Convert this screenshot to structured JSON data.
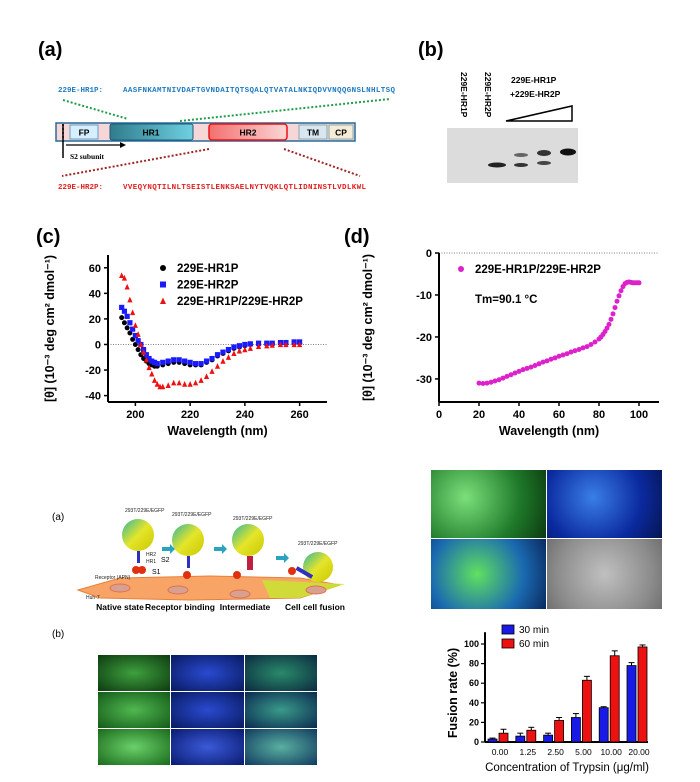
{
  "panel_labels": {
    "a": "(a)",
    "b": "(b)",
    "c": "(c)",
    "d": "(d)",
    "a2": "(a)",
    "b2": "(b)"
  },
  "domain_diagram": {
    "hr1p_label": "229E-HR1P:",
    "hr1p_seq": "AASFNKAMTNIVDAFTGVNDAITQTSQALQTVATALNKIQDVVNQQGNSLNHLTSQ",
    "hr2p_label": "229E-HR2P:",
    "hr2p_seq": "VVEQYNQTILNLTSEISTLENKSAELNYTVQKLQTLIDNINSTLVDLKWL",
    "domains": [
      "FP",
      "HR1",
      "HR2",
      "TM",
      "CP"
    ],
    "s2_label": "S2 subunit",
    "colors": {
      "hr1p": "#1f7ac0",
      "hr2p": "#e02020",
      "hr1_dots": "#1e9e4a",
      "hr2_dots": "#a02525"
    }
  },
  "gel": {
    "lanes": [
      "229E-HR1P",
      "229E-HR2P"
    ],
    "mix_label_1": "229E-HR1P",
    "mix_label_2": "+229E-HR2P"
  },
  "chart_data": [
    {
      "type": "scatter",
      "id": "c",
      "xlabel": "Wavelength (nm)",
      "ylabel": "[θ] (10⁻³ deg cm² dmol⁻¹)",
      "xlim": [
        190,
        270
      ],
      "ylim": [
        -45,
        70
      ],
      "xticks": [
        200,
        220,
        240,
        260
      ],
      "yticks": [
        60,
        40,
        20,
        0,
        -20,
        -40
      ],
      "reference_line": 0,
      "legend": "top-right",
      "series": [
        {
          "name": "229E-HR1P",
          "color": "#000000",
          "marker": "circle",
          "x": [
            195,
            196,
            197,
            198,
            199,
            200,
            201,
            202,
            203,
            204,
            205,
            206,
            207,
            208,
            210,
            212,
            214,
            216,
            218,
            220,
            222,
            224,
            226,
            228,
            230,
            232,
            234,
            236,
            238,
            240,
            242,
            245,
            248,
            250,
            253,
            255,
            258,
            260
          ],
          "y": [
            21,
            17,
            13,
            9,
            4,
            0,
            -4,
            -8,
            -11,
            -13,
            -15,
            -16,
            -17,
            -17,
            -16,
            -15,
            -14,
            -14,
            -15,
            -16,
            -16,
            -16,
            -14,
            -12,
            -9,
            -7,
            -5,
            -3,
            -2,
            -1,
            0,
            0,
            0.5,
            0.5,
            1,
            1,
            1,
            1
          ]
        },
        {
          "name": "229E-HR2P",
          "color": "#1a1aff",
          "marker": "square",
          "x": [
            195,
            196,
            197,
            198,
            199,
            200,
            201,
            202,
            203,
            204,
            205,
            206,
            207,
            208,
            210,
            212,
            214,
            216,
            218,
            220,
            222,
            224,
            226,
            228,
            230,
            232,
            234,
            236,
            238,
            240,
            242,
            245,
            248,
            250,
            253,
            255,
            258,
            260
          ],
          "y": [
            29,
            26,
            22,
            17,
            12,
            7,
            3,
            0,
            -4,
            -8,
            -11,
            -13,
            -14,
            -15,
            -14,
            -13,
            -12,
            -12,
            -13,
            -14,
            -15,
            -15,
            -13,
            -11,
            -8,
            -6,
            -4,
            -2,
            -1,
            0,
            0.5,
            1,
            1,
            1,
            1.5,
            1.5,
            2,
            2
          ]
        },
        {
          "name": "229E-HR1P/229E-HR2P",
          "color": "#ee1111",
          "marker": "triangle",
          "x": [
            195,
            196,
            197,
            198,
            199,
            200,
            201,
            202,
            203,
            204,
            205,
            206,
            207,
            208,
            209,
            210,
            212,
            214,
            216,
            218,
            220,
            222,
            224,
            226,
            228,
            230,
            232,
            234,
            236,
            238,
            240,
            242,
            245,
            248,
            250,
            253,
            255,
            258,
            260
          ],
          "y": [
            54,
            52,
            45,
            35,
            25,
            15,
            8,
            0,
            -6,
            -12,
            -18,
            -23,
            -28,
            -31,
            -33,
            -33,
            -32,
            -30,
            -30,
            -31,
            -31,
            -30,
            -28,
            -25,
            -21,
            -17,
            -13,
            -10,
            -7,
            -5,
            -4,
            -3,
            -1.5,
            -1,
            -0.5,
            0,
            0,
            0,
            0
          ]
        }
      ]
    },
    {
      "type": "scatter",
      "id": "d",
      "xlabel": "Wavelength (nm)",
      "ylabel": "[θ] (10⁻³ deg cm² dmol⁻¹)",
      "xlim": [
        0,
        110
      ],
      "ylim": [
        -35.5,
        0
      ],
      "xticks": [
        0,
        20,
        40,
        60,
        80,
        100
      ],
      "yticks": [
        0,
        -10,
        -20,
        -30
      ],
      "reference_line": 0,
      "legend": "top-left",
      "annotation": "Tm=90.1 °C",
      "series": [
        {
          "name": "229E-HR1P/229E-HR2P",
          "color": "#dd22cc",
          "marker": "circle",
          "x": [
            20,
            22,
            24,
            26,
            28,
            30,
            32,
            34,
            36,
            38,
            40,
            42,
            44,
            46,
            48,
            50,
            52,
            54,
            56,
            58,
            60,
            62,
            64,
            66,
            68,
            70,
            72,
            74,
            76,
            78,
            80,
            81,
            82,
            83,
            84,
            85,
            86,
            87,
            88,
            89,
            90,
            91,
            92,
            93,
            94,
            95,
            96,
            97,
            98,
            99,
            100
          ],
          "y": [
            -31,
            -31.1,
            -31,
            -30.8,
            -30.5,
            -30.2,
            -29.8,
            -29.4,
            -29,
            -28.6,
            -28.2,
            -27.8,
            -27.5,
            -27.2,
            -26.8,
            -26.4,
            -26,
            -25.7,
            -25.3,
            -25,
            -24.6,
            -24.3,
            -24,
            -23.6,
            -23.3,
            -23,
            -22.6,
            -22.3,
            -21.8,
            -21.2,
            -20.5,
            -20,
            -19.4,
            -18.7,
            -17.9,
            -17,
            -15.8,
            -14.5,
            -13,
            -11.5,
            -10.2,
            -9,
            -8,
            -7.3,
            -7,
            -6.9,
            -7,
            -7.1,
            -7.1,
            -7.1,
            -7.1
          ]
        }
      ]
    },
    {
      "type": "bar",
      "id": "fusion",
      "xlabel": "Concentration of Trypsin (μg/ml)",
      "ylabel": "Fusion rate (%)",
      "ylim": [
        0,
        110
      ],
      "yticks": [
        0,
        20,
        40,
        60,
        80,
        100
      ],
      "categories": [
        "0.00",
        "1.25",
        "2.50",
        "5.00",
        "10.00",
        "20.00"
      ],
      "legend": "top-left",
      "series": [
        {
          "name": "30 min",
          "color": "#1a1ae6",
          "values": [
            3,
            6,
            7,
            25,
            35,
            78
          ],
          "errors": [
            1,
            3,
            2,
            4,
            1,
            3
          ]
        },
        {
          "name": "60 min",
          "color": "#ee1111",
          "values": [
            9,
            12,
            22,
            63,
            88,
            97
          ],
          "errors": [
            4,
            3,
            3,
            4,
            5,
            2
          ]
        }
      ]
    }
  ],
  "schematic": {
    "cell_label": "293T/229E/EGFP",
    "hr2": "HR2",
    "hr1": "HR1",
    "s2": "S2",
    "s1": "S1",
    "receptor": "Receptor (APN)",
    "target_cell": "Huh-7",
    "stages": [
      "Native state",
      "Receptor binding",
      "Intermediate",
      "Cell cell fusion"
    ]
  }
}
